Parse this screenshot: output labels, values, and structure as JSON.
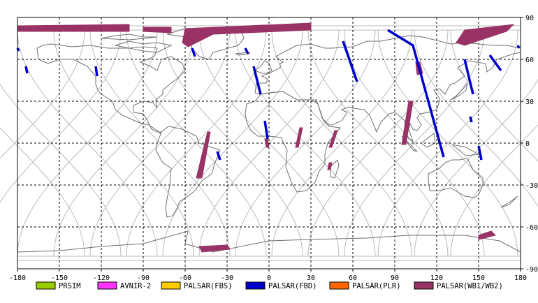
{
  "map": {
    "lon_range": [
      -180,
      180
    ],
    "lat_range": [
      -90,
      90
    ],
    "lon_ticks": [
      -180,
      -150,
      -120,
      -90,
      -60,
      -30,
      0,
      30,
      60,
      90,
      120,
      150,
      180
    ],
    "lat_ticks": [
      90,
      60,
      30,
      0,
      -30,
      -60,
      -90
    ],
    "lon_labels": [
      "-180",
      "-150",
      "-120",
      "-90",
      "-60",
      "-30",
      "0",
      "30",
      "60",
      "90",
      "120",
      "150",
      "180"
    ],
    "lat_labels": [
      "90",
      "60",
      "30",
      "0",
      "-30",
      "-60",
      "-90"
    ],
    "grid": "dashed",
    "frame_color": "#000000",
    "grid_color": "#000000",
    "orbit_color": "#bbbbbb",
    "coast_color": "#707070"
  },
  "legend": {
    "items": [
      {
        "label": "PRSIM",
        "color": "#99cc00"
      },
      {
        "label": "AVNIR-2",
        "color": "#ff33ff"
      },
      {
        "label": "PALSAR(FBS)",
        "color": "#ffcc00"
      },
      {
        "label": "PALSAR(FBD)",
        "color": "#0000cc"
      },
      {
        "label": "PALSAR(PLR)",
        "color": "#ff6600"
      },
      {
        "label": "PALSAR(WB1/WB2)",
        "color": "#993366"
      }
    ]
  },
  "swaths": {
    "wb": [
      {
        "pts": [
          [
            -180,
            84
          ],
          [
            -100,
            85
          ],
          [
            -100,
            80
          ],
          [
            -180,
            80
          ]
        ]
      },
      {
        "pts": [
          [
            -90,
            83
          ],
          [
            -70,
            83
          ],
          [
            -70,
            79
          ],
          [
            -90,
            80
          ]
        ]
      },
      {
        "pts": [
          [
            -60,
            82
          ],
          [
            30,
            86
          ],
          [
            30,
            81
          ],
          [
            -40,
            78
          ],
          [
            -58,
            69
          ],
          [
            -62,
            72
          ]
        ]
      },
      {
        "pts": [
          [
            -42,
            8
          ],
          [
            -44,
            8
          ],
          [
            -52,
            -25
          ],
          [
            -48,
            -25
          ]
        ]
      },
      {
        "pts": [
          [
            -1,
            3
          ],
          [
            -3,
            3
          ],
          [
            -2,
            -3
          ],
          [
            0,
            -3
          ]
        ]
      },
      {
        "pts": [
          [
            24,
            11
          ],
          [
            22,
            11
          ],
          [
            19,
            -3
          ],
          [
            21,
            -3
          ]
        ]
      },
      {
        "pts": [
          [
            49,
            9
          ],
          [
            47,
            9
          ],
          [
            43,
            -3
          ],
          [
            45,
            -3
          ]
        ]
      },
      {
        "pts": [
          [
            45,
            -14
          ],
          [
            43,
            -14
          ],
          [
            42,
            -19
          ],
          [
            44,
            -19
          ]
        ]
      },
      {
        "pts": [
          [
            105,
            58
          ],
          [
            108,
            58
          ],
          [
            110,
            50
          ],
          [
            106,
            49
          ]
        ]
      },
      {
        "pts": [
          [
            103,
            30
          ],
          [
            100,
            30
          ],
          [
            95,
            -1
          ],
          [
            98,
            -1
          ]
        ]
      },
      {
        "pts": [
          [
            140,
            81
          ],
          [
            175,
            85
          ],
          [
            170,
            80
          ],
          [
            140,
            70
          ],
          [
            134,
            72
          ]
        ]
      },
      {
        "pts": [
          [
            -50,
            -74
          ],
          [
            -30,
            -73
          ],
          [
            -28,
            -76
          ],
          [
            -48,
            -78
          ]
        ]
      },
      {
        "pts": [
          [
            150,
            -66
          ],
          [
            159,
            -63
          ],
          [
            162,
            -66
          ],
          [
            150,
            -69
          ]
        ]
      }
    ],
    "fbd": [
      {
        "pts": [
          [
            -180,
            68
          ],
          [
            -179,
            66
          ]
        ]
      },
      {
        "pts": [
          [
            -174,
            55
          ],
          [
            -173,
            50
          ]
        ]
      },
      {
        "pts": [
          [
            -124,
            55
          ],
          [
            -123,
            48
          ]
        ]
      },
      {
        "pts": [
          [
            -55,
            68
          ],
          [
            -53,
            62
          ]
        ]
      },
      {
        "pts": [
          [
            -17,
            68
          ],
          [
            -15,
            64
          ]
        ]
      },
      {
        "pts": [
          [
            -11,
            55
          ],
          [
            -6,
            35
          ]
        ]
      },
      {
        "pts": [
          [
            -3,
            16
          ],
          [
            -1,
            3
          ]
        ]
      },
      {
        "pts": [
          [
            -37,
            -6
          ],
          [
            -35,
            -12
          ]
        ]
      },
      {
        "pts": [
          [
            53,
            73
          ],
          [
            63,
            44
          ]
        ]
      },
      {
        "pts": [
          [
            85,
            81
          ],
          [
            103,
            70
          ],
          [
            125,
            -10
          ]
        ]
      },
      {
        "pts": [
          [
            140,
            60
          ],
          [
            146,
            35
          ]
        ]
      },
      {
        "pts": [
          [
            158,
            63
          ],
          [
            166,
            52
          ]
        ]
      },
      {
        "pts": [
          [
            144,
            19
          ],
          [
            145,
            15
          ]
        ]
      },
      {
        "pts": [
          [
            150,
            -2
          ],
          [
            152,
            -12
          ]
        ]
      },
      {
        "pts": [
          [
            178,
            70
          ],
          [
            179,
            68
          ]
        ]
      }
    ]
  },
  "orbit_offsets": [
    -182,
    -156,
    -130,
    -104,
    -78,
    -52,
    -26,
    0,
    26,
    52,
    78,
    104,
    128,
    154,
    180
  ],
  "coast": [
    [
      [
        -166,
        68
      ],
      [
        -162,
        70
      ],
      [
        -156,
        71
      ],
      [
        -141,
        69
      ],
      [
        -128,
        70
      ],
      [
        -115,
        68
      ],
      [
        -100,
        68
      ],
      [
        -90,
        69
      ],
      [
        -80,
        68
      ],
      [
        -82,
        62
      ],
      [
        -92,
        58
      ],
      [
        -85,
        55
      ],
      [
        -80,
        52
      ],
      [
        -77,
        60
      ],
      [
        -70,
        62
      ],
      [
        -62,
        57
      ],
      [
        -60,
        52
      ],
      [
        -66,
        46
      ],
      [
        -70,
        43
      ],
      [
        -76,
        38
      ],
      [
        -76,
        35
      ],
      [
        -81,
        31
      ],
      [
        -80,
        25
      ],
      [
        -83,
        29
      ],
      [
        -90,
        30
      ],
      [
        -97,
        27
      ],
      [
        -97,
        22
      ],
      [
        -90,
        21
      ],
      [
        -87,
        16
      ],
      [
        -84,
        10
      ],
      [
        -80,
        8
      ],
      [
        -77,
        8
      ],
      [
        -78,
        7
      ],
      [
        -80,
        9
      ],
      [
        -86,
        13
      ],
      [
        -91,
        14
      ],
      [
        -96,
        16
      ],
      [
        -105,
        20
      ],
      [
        -110,
        24
      ],
      [
        -112,
        30
      ],
      [
        -117,
        33
      ],
      [
        -122,
        37
      ],
      [
        -124,
        42
      ],
      [
        -124,
        48
      ],
      [
        -130,
        55
      ],
      [
        -140,
        60
      ],
      [
        -150,
        60
      ],
      [
        -158,
        57
      ],
      [
        -165,
        60
      ],
      [
        -166,
        68
      ]
    ],
    [
      [
        -77,
        8
      ],
      [
        -72,
        12
      ],
      [
        -62,
        10
      ],
      [
        -52,
        5
      ],
      [
        -50,
        0
      ],
      [
        -44,
        -2
      ],
      [
        -35,
        -5
      ],
      [
        -39,
        -15
      ],
      [
        -41,
        -22
      ],
      [
        -48,
        -27
      ],
      [
        -53,
        -34
      ],
      [
        -58,
        -38
      ],
      [
        -64,
        -42
      ],
      [
        -66,
        -47
      ],
      [
        -69,
        -52
      ],
      [
        -73,
        -53
      ],
      [
        -74,
        -47
      ],
      [
        -73,
        -40
      ],
      [
        -71,
        -30
      ],
      [
        -70,
        -18
      ],
      [
        -76,
        -14
      ],
      [
        -81,
        -5
      ],
      [
        -80,
        0
      ],
      [
        -77,
        8
      ]
    ],
    [
      [
        -73,
        78
      ],
      [
        -60,
        82
      ],
      [
        -35,
        83
      ],
      [
        -20,
        81
      ],
      [
        -18,
        75
      ],
      [
        -22,
        70
      ],
      [
        -40,
        65
      ],
      [
        -43,
        60
      ],
      [
        -50,
        62
      ],
      [
        -55,
        68
      ],
      [
        -60,
        76
      ],
      [
        -73,
        78
      ]
    ],
    [
      [
        -10,
        36
      ],
      [
        -9,
        43
      ],
      [
        -2,
        43
      ],
      [
        -1,
        46
      ],
      [
        -5,
        48
      ],
      [
        2,
        51
      ],
      [
        8,
        54
      ],
      [
        8,
        57
      ],
      [
        10,
        58
      ],
      [
        5,
        62
      ],
      [
        12,
        66
      ],
      [
        20,
        70
      ],
      [
        30,
        71
      ],
      [
        40,
        68
      ],
      [
        45,
        68
      ],
      [
        60,
        69
      ],
      [
        70,
        73
      ],
      [
        80,
        73
      ],
      [
        100,
        77
      ],
      [
        110,
        76
      ],
      [
        130,
        71
      ],
      [
        140,
        72
      ],
      [
        160,
        70
      ],
      [
        170,
        70
      ],
      [
        180,
        68
      ],
      [
        180,
        65
      ],
      [
        175,
        64
      ],
      [
        163,
        60
      ],
      [
        160,
        54
      ],
      [
        156,
        51
      ],
      [
        155,
        57
      ],
      [
        143,
        59
      ],
      [
        135,
        54
      ],
      [
        140,
        48
      ],
      [
        133,
        43
      ],
      [
        130,
        42
      ],
      [
        128,
        39
      ],
      [
        126,
        35
      ],
      [
        122,
        39
      ],
      [
        118,
        38
      ],
      [
        122,
        32
      ],
      [
        122,
        30
      ],
      [
        120,
        24
      ],
      [
        114,
        22
      ],
      [
        108,
        21
      ],
      [
        106,
        18
      ],
      [
        109,
        13
      ],
      [
        106,
        9
      ],
      [
        103,
        10
      ],
      [
        101,
        14
      ],
      [
        100,
        10
      ],
      [
        103,
        1
      ],
      [
        100,
        3
      ],
      [
        98,
        8
      ],
      [
        97,
        16
      ],
      [
        94,
        19
      ],
      [
        90,
        22
      ],
      [
        86,
        21
      ],
      [
        80,
        15
      ],
      [
        77,
        8
      ],
      [
        72,
        20
      ],
      [
        68,
        24
      ],
      [
        60,
        25
      ],
      [
        57,
        26
      ],
      [
        52,
        24
      ],
      [
        56,
        22
      ],
      [
        52,
        16
      ],
      [
        45,
        13
      ],
      [
        43,
        13
      ],
      [
        38,
        18
      ],
      [
        35,
        28
      ],
      [
        34,
        31
      ],
      [
        30,
        31
      ],
      [
        20,
        31
      ],
      [
        10,
        37
      ],
      [
        0,
        36
      ],
      [
        -6,
        35
      ],
      [
        -10,
        36
      ]
    ],
    [
      [
        -17,
        21
      ],
      [
        -16,
        15
      ],
      [
        -13,
        9
      ],
      [
        -8,
        5
      ],
      [
        0,
        5
      ],
      [
        9,
        4
      ],
      [
        10,
        1
      ],
      [
        13,
        -5
      ],
      [
        12,
        -17
      ],
      [
        16,
        -28
      ],
      [
        20,
        -35
      ],
      [
        27,
        -34
      ],
      [
        33,
        -28
      ],
      [
        36,
        -20
      ],
      [
        40,
        -15
      ],
      [
        40,
        -8
      ],
      [
        42,
        0
      ],
      [
        51,
        11
      ],
      [
        43,
        12
      ],
      [
        39,
        16
      ],
      [
        35,
        28
      ],
      [
        30,
        31
      ],
      [
        20,
        31
      ],
      [
        10,
        37
      ],
      [
        0,
        36
      ],
      [
        -6,
        35
      ],
      [
        -10,
        30
      ],
      [
        -16,
        28
      ],
      [
        -17,
        21
      ]
    ],
    [
      [
        114,
        -22
      ],
      [
        114,
        -26
      ],
      [
        115,
        -34
      ],
      [
        122,
        -34
      ],
      [
        130,
        -32
      ],
      [
        135,
        -35
      ],
      [
        140,
        -38
      ],
      [
        147,
        -39
      ],
      [
        150,
        -37
      ],
      [
        153,
        -30
      ],
      [
        153,
        -25
      ],
      [
        146,
        -19
      ],
      [
        142,
        -11
      ],
      [
        136,
        -12
      ],
      [
        131,
        -12
      ],
      [
        126,
        -14
      ],
      [
        122,
        -18
      ],
      [
        114,
        -22
      ]
    ],
    [
      [
        -10,
        52
      ],
      [
        -6,
        55
      ],
      [
        -3,
        59
      ],
      [
        0,
        57
      ],
      [
        2,
        52
      ],
      [
        -2,
        50
      ],
      [
        -5,
        50
      ],
      [
        -10,
        52
      ]
    ],
    [
      [
        -24,
        64
      ],
      [
        -14,
        65
      ],
      [
        -14,
        64
      ],
      [
        -22,
        63
      ],
      [
        -24,
        64
      ]
    ],
    [
      [
        49,
        -12
      ],
      [
        50,
        -16
      ],
      [
        47,
        -25
      ],
      [
        44,
        -24
      ],
      [
        44,
        -17
      ],
      [
        49,
        -12
      ]
    ],
    [
      [
        130,
        31
      ],
      [
        136,
        34
      ],
      [
        141,
        38
      ],
      [
        142,
        43
      ],
      [
        140,
        40
      ],
      [
        134,
        34
      ],
      [
        130,
        31
      ]
    ],
    [
      [
        95,
        5
      ],
      [
        106,
        -6
      ],
      [
        103,
        -5
      ],
      [
        95,
        5
      ]
    ],
    [
      [
        109,
        0
      ],
      [
        118,
        7
      ],
      [
        119,
        0
      ],
      [
        113,
        -3
      ],
      [
        109,
        0
      ]
    ],
    [
      [
        131,
        -1
      ],
      [
        141,
        -3
      ],
      [
        150,
        -8
      ],
      [
        141,
        -9
      ],
      [
        131,
        -1
      ]
    ],
    [
      [
        166,
        -46
      ],
      [
        174,
        -41
      ],
      [
        178,
        -38
      ],
      [
        172,
        -44
      ],
      [
        166,
        -46
      ]
    ],
    [
      [
        -180,
        -78
      ],
      [
        -150,
        -77
      ],
      [
        -120,
        -74
      ],
      [
        -90,
        -72
      ],
      [
        -65,
        -65
      ],
      [
        -58,
        -63
      ],
      [
        -60,
        -72
      ],
      [
        -40,
        -78
      ],
      [
        0,
        -70
      ],
      [
        30,
        -69
      ],
      [
        70,
        -68
      ],
      [
        100,
        -66
      ],
      [
        140,
        -66
      ],
      [
        165,
        -70
      ],
      [
        180,
        -78
      ]
    ],
    [
      [
        -110,
        70
      ],
      [
        -100,
        73
      ],
      [
        -90,
        71
      ],
      [
        -80,
        72
      ],
      [
        -70,
        70
      ],
      [
        -80,
        65
      ],
      [
        -90,
        66
      ],
      [
        -100,
        68
      ],
      [
        -110,
        70
      ]
    ],
    [
      [
        -120,
        75
      ],
      [
        -110,
        77
      ],
      [
        -100,
        78
      ],
      [
        -90,
        76
      ],
      [
        -80,
        76
      ],
      [
        -100,
        74
      ],
      [
        -120,
        75
      ]
    ]
  ]
}
